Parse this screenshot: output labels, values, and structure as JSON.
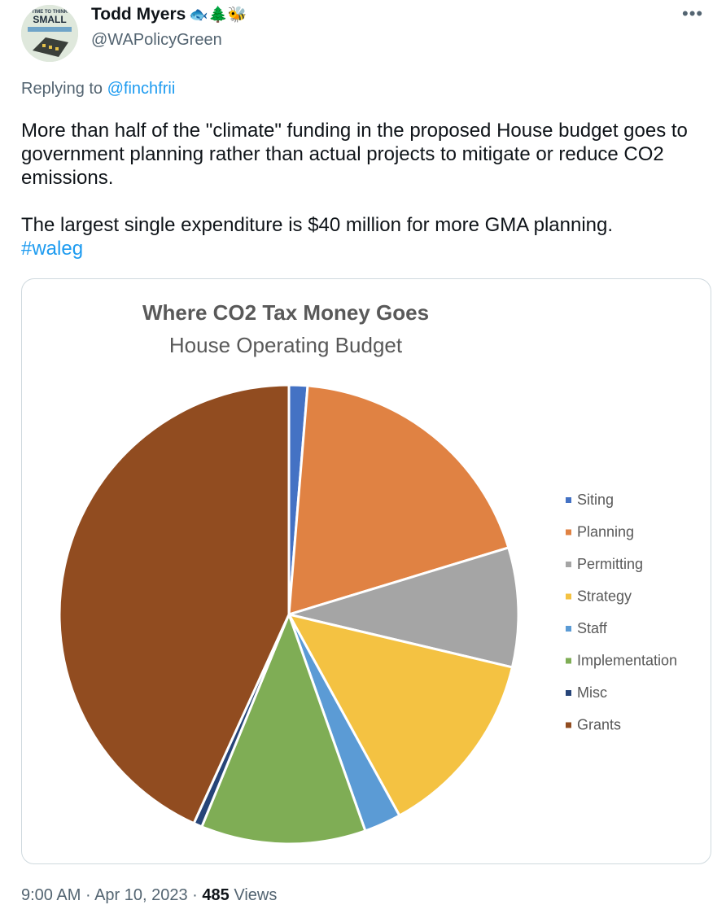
{
  "author": {
    "name": "Todd Myers",
    "name_emoji": "🐟🌲🐝",
    "handle": "@WAPolicyGreen",
    "avatar_text_top": "TIME TO THINK",
    "avatar_text_main": "SMALL"
  },
  "menu_icon": "more-icon",
  "reply": {
    "prefix": "Replying to",
    "target": "@finchfrii"
  },
  "tweet": {
    "paragraph1": "More than half of the \"climate\" funding in the proposed House budget goes to government planning rather than actual projects to mitigate or reduce CO2 emissions.",
    "paragraph2": "The largest single expenditure is $40 million for more GMA planning.",
    "hashtag": "#waleg"
  },
  "meta": {
    "time": "9:00 AM",
    "sep": "·",
    "date": "Apr 10, 2023",
    "views_count": "485",
    "views_label": "Views"
  },
  "chart_data": {
    "type": "pie",
    "title": "Where CO2 Tax Money Goes",
    "subtitle": "House Operating Budget",
    "legend_position": "right",
    "categories": [
      "Siting",
      "Planning",
      "Permitting",
      "Strategy",
      "Staff",
      "Implementation",
      "Misc",
      "Grants"
    ],
    "values": [
      1.3,
      19.0,
      8.4,
      13.3,
      2.6,
      11.6,
      0.6,
      43.2
    ],
    "colors": [
      "#4472c4",
      "#e08243",
      "#a5a5a5",
      "#f4c242",
      "#5b9bd5",
      "#7fad55",
      "#264478",
      "#914c20"
    ]
  }
}
